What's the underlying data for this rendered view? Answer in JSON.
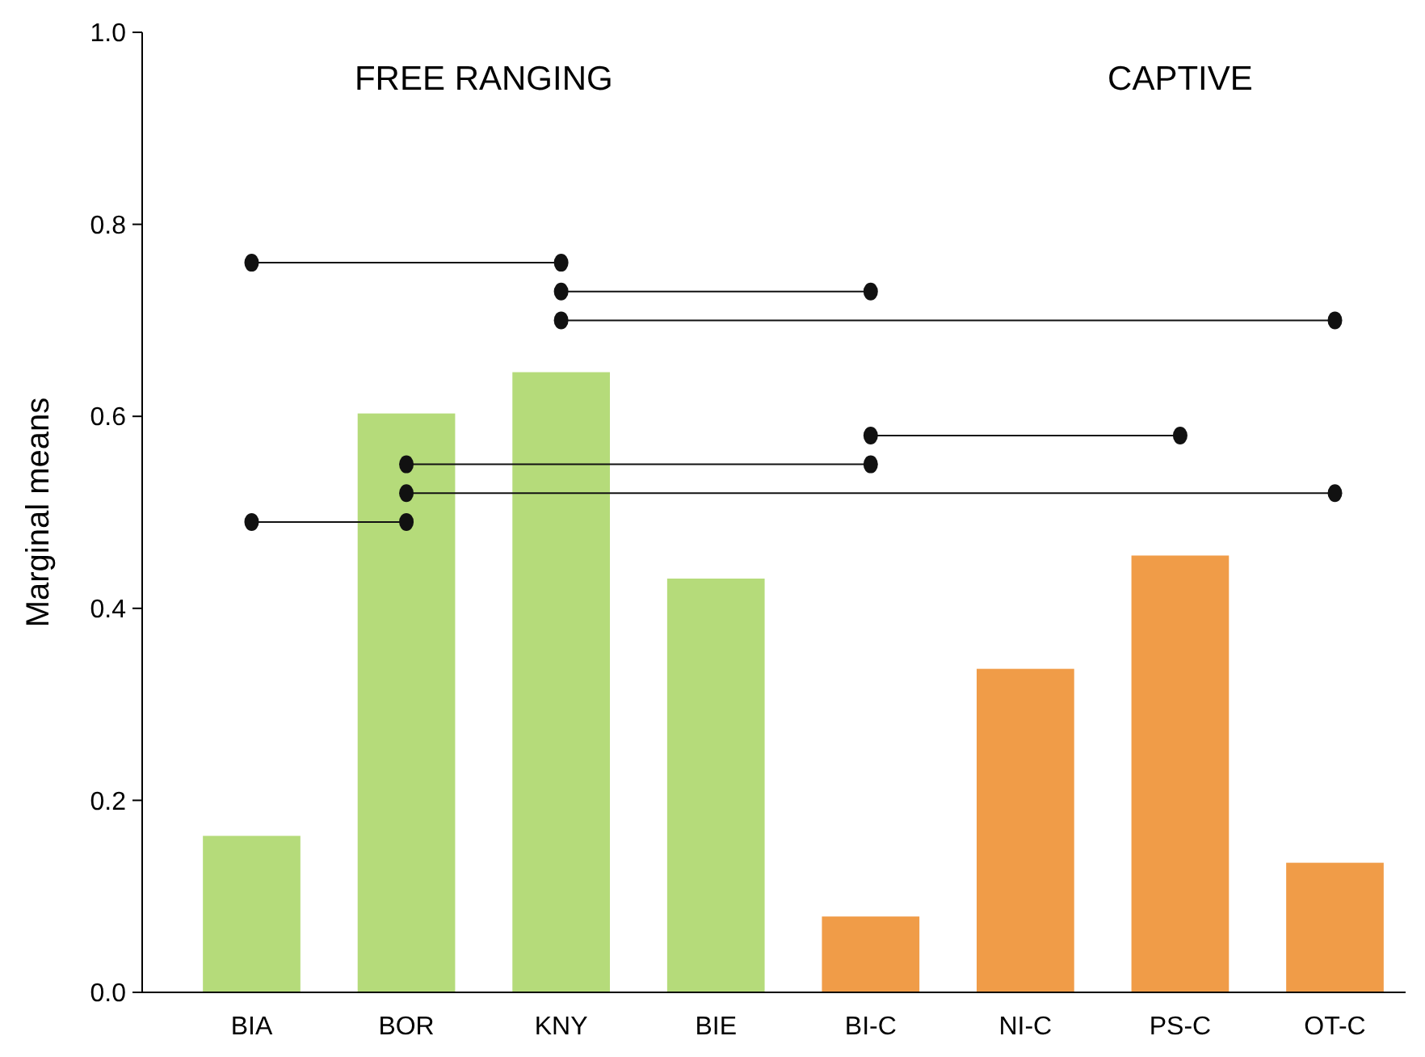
{
  "chart_data": {
    "type": "bar",
    "ylabel": "Marginal means",
    "categories": [
      "BIA",
      "BOR",
      "KNY",
      "BIE",
      "BI-C",
      "NI-C",
      "PS-C",
      "OT-C"
    ],
    "ylim": [
      0,
      1
    ],
    "yticks": [
      {
        "value": 0,
        "label": "0.0"
      },
      {
        "value": 0.2,
        "label": "0.2"
      },
      {
        "value": 0.4,
        "label": "0.4"
      },
      {
        "value": 0.6,
        "label": "0.6"
      },
      {
        "value": 0.8,
        "label": "0.8"
      },
      {
        "value": 1,
        "label": "1.0"
      }
    ],
    "grid": false,
    "annotations": [
      "FREE RANGING",
      "CAPTIVE"
    ],
    "series": [
      {
        "values": [
          0.163,
          0.603,
          0.646,
          0.431,
          0.079,
          0.337,
          0.455,
          0.135
        ],
        "colors": [
          "#b5db7a",
          "#b5db7a",
          "#b5db7a",
          "#b5db7a",
          "#f09c48",
          "#f09c48",
          "#f09c48",
          "#f09c48"
        ]
      },
      {
        "type": "line",
        "x": [
          "BIA",
          "KNY"
        ],
        "values": [
          0.76,
          0.76
        ],
        "color": "#111111",
        "marker": "circle"
      },
      {
        "type": "line",
        "x": [
          "KNY",
          "BI-C"
        ],
        "values": [
          0.73,
          0.73
        ],
        "color": "#111111",
        "marker": "circle"
      },
      {
        "type": "line",
        "x": [
          "KNY",
          "OT-C"
        ],
        "values": [
          0.7,
          0.7
        ],
        "color": "#111111",
        "marker": "circle"
      },
      {
        "type": "line",
        "x": [
          "BI-C",
          "PS-C"
        ],
        "values": [
          0.58,
          0.58
        ],
        "color": "#111111",
        "marker": "circle"
      },
      {
        "type": "line",
        "x": [
          "BOR",
          "BI-C"
        ],
        "values": [
          0.55,
          0.55
        ],
        "color": "#111111",
        "marker": "circle"
      },
      {
        "type": "line",
        "x": [
          "BOR",
          "OT-C"
        ],
        "values": [
          0.52,
          0.52
        ],
        "color": "#111111",
        "marker": "circle"
      },
      {
        "type": "line",
        "x": [
          "BIA",
          "BOR"
        ],
        "values": [
          0.49,
          0.49
        ],
        "color": "#111111",
        "marker": "circle"
      }
    ]
  }
}
